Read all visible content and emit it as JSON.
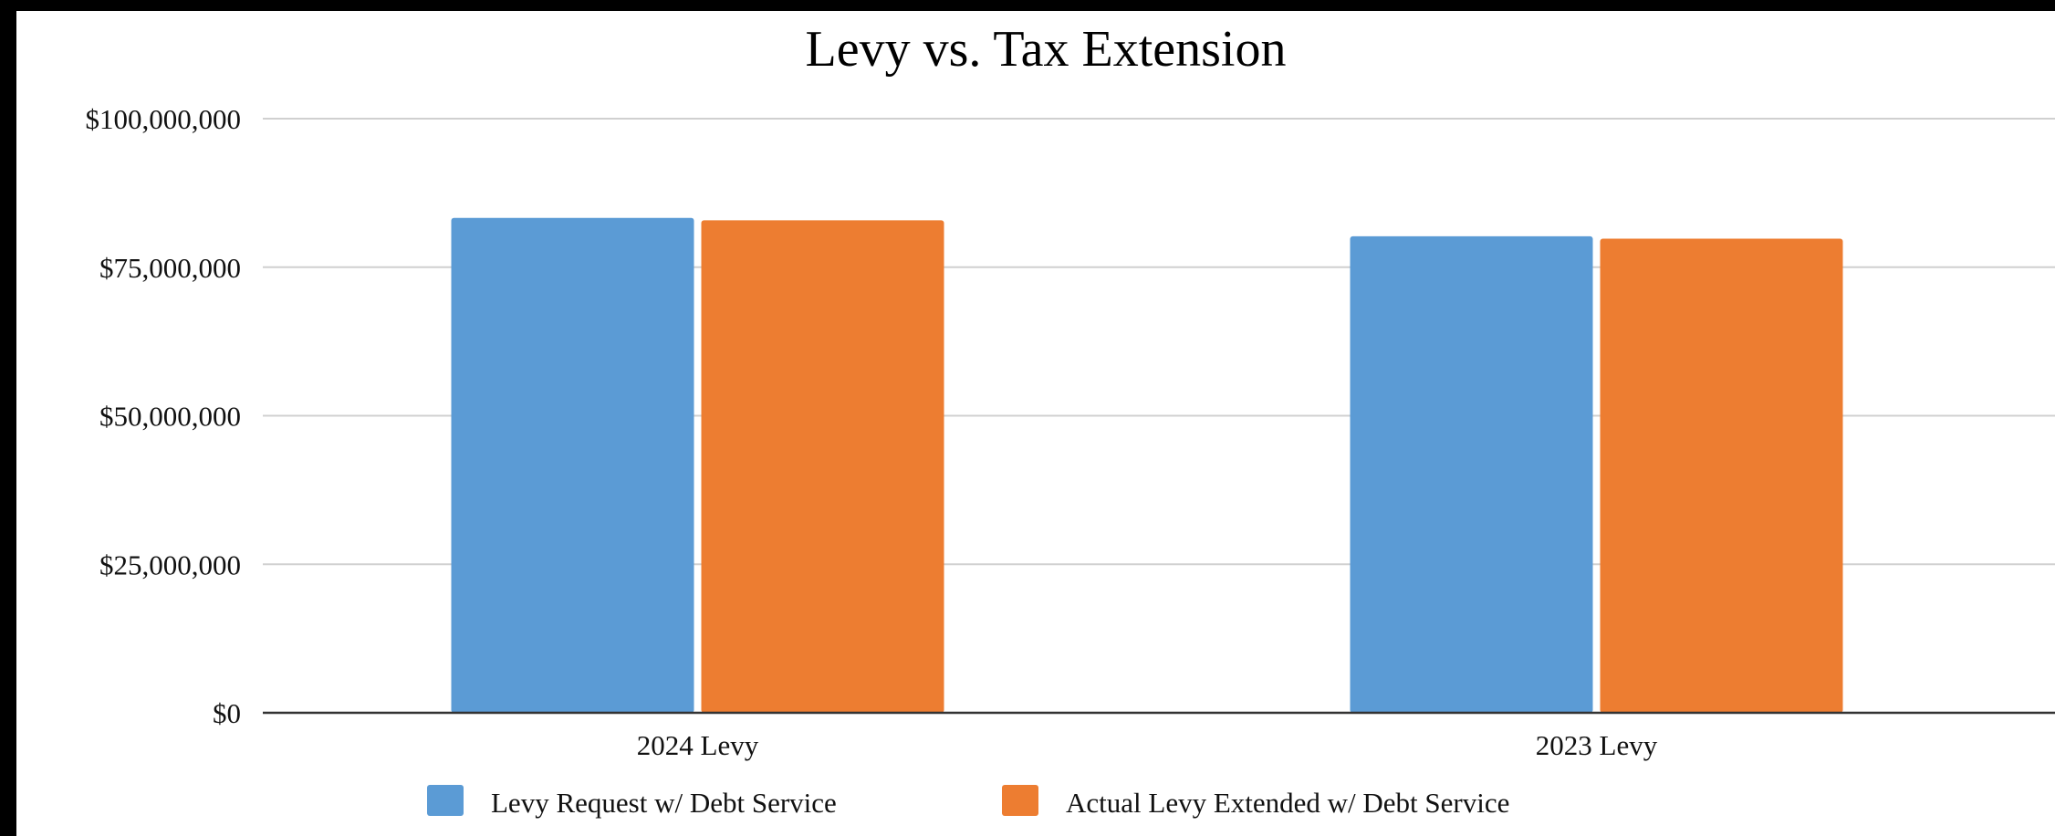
{
  "chart_data": {
    "type": "bar",
    "title": "Levy vs. Tax Extension",
    "xlabel": "",
    "ylabel": "",
    "categories": [
      "2024 Levy",
      "2023 Levy"
    ],
    "series": [
      {
        "name": "Levy Request w/ Debt Service",
        "color": "#5b9bd5",
        "values": [
          83300000,
          80200000
        ]
      },
      {
        "name": "Actual Levy Extended w/ Debt Service",
        "color": "#ed7d31",
        "values": [
          82900000,
          79800000
        ]
      }
    ],
    "ylim": [
      0,
      100000000
    ],
    "yticks": [
      {
        "value": 0,
        "label": "$0"
      },
      {
        "value": 25000000,
        "label": "$25,000,000"
      },
      {
        "value": 50000000,
        "label": "$50,000,000"
      },
      {
        "value": 75000000,
        "label": "$75,000,000"
      },
      {
        "value": 100000000,
        "label": "$100,000,000"
      }
    ],
    "grid": true,
    "legend_position": "bottom"
  }
}
